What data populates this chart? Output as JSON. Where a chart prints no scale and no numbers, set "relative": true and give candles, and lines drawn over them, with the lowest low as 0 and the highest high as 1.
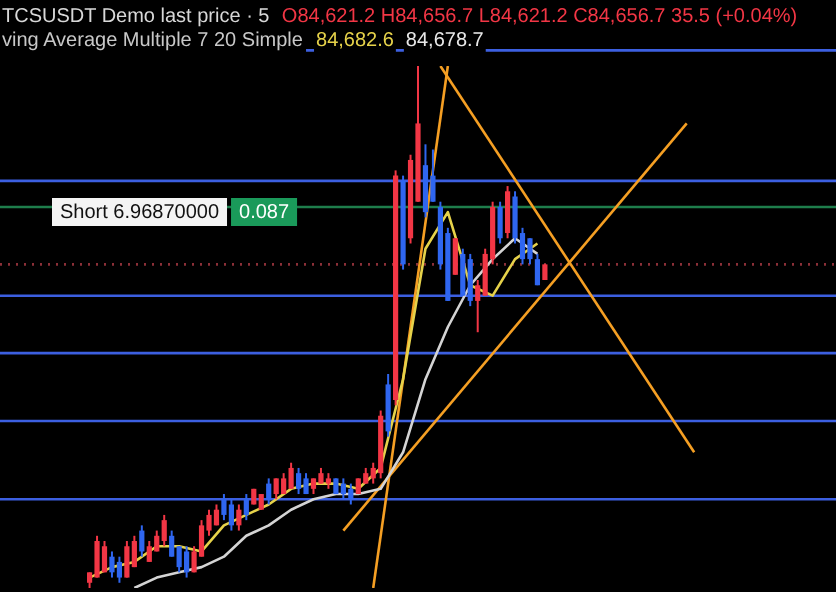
{
  "chart_data": {
    "type": "candlestick",
    "relative": true,
    "categories": [
      null,
      null,
      null,
      null,
      null,
      null,
      null,
      null,
      null,
      null,
      null,
      null,
      null,
      null,
      null,
      null,
      null,
      null,
      null,
      null,
      null,
      null,
      null,
      null,
      null,
      null,
      null,
      null,
      null,
      null,
      null,
      null,
      null,
      null,
      null,
      null,
      null,
      null,
      null,
      null,
      null,
      null,
      null,
      null,
      null,
      null,
      null,
      null,
      null,
      null,
      null,
      null,
      null,
      null,
      null,
      null,
      null,
      null,
      null,
      null,
      null,
      null,
      null,
      null,
      null,
      null,
      null,
      null,
      null,
      null,
      null,
      null,
      null,
      null,
      null,
      null,
      null,
      null,
      null,
      null,
      null,
      null,
      null,
      null,
      null,
      null,
      null,
      null,
      null,
      null,
      null,
      null,
      null,
      null,
      null,
      null,
      null,
      null,
      null,
      null,
      null,
      null,
      null,
      null,
      null,
      null,
      null,
      null,
      null,
      null,
      null,
      null,
      null
    ],
    "ohlc": [
      null,
      null,
      null,
      null,
      null,
      null,
      null,
      null,
      null,
      null,
      null,
      null,
      [
        0.01,
        0.03,
        0,
        0.03
      ],
      [
        0.02,
        0.1,
        0.02,
        0.09
      ],
      [
        0.03,
        0.09,
        0.03,
        0.08
      ],
      [
        0.06,
        0.07,
        0.02,
        0.03
      ],
      [
        0.05,
        0.06,
        0.01,
        0.02
      ],
      [
        0.02,
        0.09,
        0.02,
        0.08
      ],
      [
        0.04,
        0.1,
        0.04,
        0.09
      ],
      [
        0.11,
        0.12,
        0.06,
        0.07
      ],
      [
        0.05,
        0.09,
        0.05,
        0.08
      ],
      [
        0.07,
        0.11,
        0.07,
        0.1
      ],
      [
        0.09,
        0.14,
        0.08,
        0.13
      ],
      [
        0.1,
        0.11,
        0.06,
        0.06
      ],
      [
        0.08,
        0.08,
        0.03,
        0.04
      ],
      [
        0.07,
        0.08,
        0.02,
        0.03
      ],
      [
        0.03,
        0.08,
        0.03,
        0.07
      ],
      [
        0.06,
        0.13,
        0.06,
        0.12
      ],
      [
        0.11,
        0.15,
        0.1,
        0.14
      ],
      [
        0.12,
        0.16,
        0.12,
        0.15
      ],
      [
        0.17,
        0.18,
        0.13,
        0.14
      ],
      [
        0.16,
        0.17,
        0.11,
        0.12
      ],
      [
        0.12,
        0.16,
        0.11,
        0.15
      ],
      [
        0.17,
        0.18,
        0.13,
        0.14
      ],
      [
        0.16,
        0.19,
        0.16,
        0.19
      ],
      [
        0.15,
        0.18,
        0.15,
        0.18
      ],
      [
        0.2,
        0.21,
        0.16,
        0.17
      ],
      [
        0.18,
        0.21,
        0.17,
        0.21
      ],
      [
        0.18,
        0.22,
        0.18,
        0.21
      ],
      [
        0.19,
        0.24,
        0.19,
        0.23
      ],
      [
        0.22,
        0.23,
        0.18,
        0.19
      ],
      [
        0.21,
        0.22,
        0.18,
        0.18
      ],
      [
        0.19,
        0.21,
        0.18,
        0.21
      ],
      [
        0.2,
        0.23,
        0.2,
        0.22
      ],
      [
        0.2,
        0.22,
        0.19,
        0.21
      ],
      [
        0.21,
        0.21,
        0.18,
        0.18
      ],
      [
        0.2,
        0.21,
        0.17,
        0.18
      ],
      [
        0.19,
        0.2,
        0.16,
        0.17
      ],
      [
        0.18,
        0.21,
        0.18,
        0.21
      ],
      [
        0.2,
        0.23,
        0.2,
        0.22
      ],
      [
        0.21,
        0.24,
        0.2,
        0.23
      ],
      [
        0.22,
        0.34,
        0.21,
        0.33
      ],
      [
        0.39,
        0.41,
        0.29,
        0.3
      ],
      [
        0.36,
        0.8,
        0.35,
        0.79
      ],
      [
        0.78,
        0.79,
        0.61,
        0.62
      ],
      [
        0.67,
        0.83,
        0.66,
        0.82
      ],
      [
        0.74,
        1,
        0.74,
        0.89
      ],
      [
        0.81,
        0.85,
        0.71,
        0.72
      ],
      [
        0.79,
        0.84,
        0.74,
        0.74
      ],
      [
        0.73,
        0.74,
        0.61,
        0.62
      ],
      [
        0.68,
        0.69,
        0.55,
        0.55
      ],
      [
        0.6,
        0.67,
        0.6,
        0.67
      ],
      [
        0.64,
        0.65,
        0.56,
        0.56
      ],
      [
        0.63,
        0.64,
        0.54,
        0.55
      ],
      [
        0.55,
        0.59,
        0.49,
        0.58
      ],
      [
        0.56,
        0.65,
        0.56,
        0.64
      ],
      [
        0.63,
        0.74,
        0.62,
        0.73
      ],
      [
        0.73,
        0.74,
        0.66,
        0.67
      ],
      [
        0.68,
        0.77,
        0.67,
        0.76
      ],
      [
        0.75,
        0.76,
        0.66,
        0.67
      ],
      [
        0.68,
        0.69,
        0.62,
        0.63
      ],
      [
        0.67,
        0.67,
        0.62,
        0.63
      ],
      [
        0.63,
        0.64,
        0.58,
        0.58
      ],
      [
        0.59,
        0.62,
        0.59,
        0.62
      ],
      null,
      null,
      null,
      null,
      null,
      null,
      null,
      null,
      null,
      null,
      null,
      null,
      null,
      null,
      null,
      null,
      null,
      null,
      null,
      null,
      null,
      null,
      null,
      null,
      null,
      null,
      null,
      null,
      null,
      null,
      null,
      null,
      null,
      null,
      null,
      null,
      null,
      null,
      null
    ],
    "series": [
      {
        "type": "line",
        "color": "#e6d24a",
        "values": [
          null,
          null,
          null,
          null,
          null,
          null,
          null,
          null,
          null,
          null,
          null,
          null,
          0.02,
          null,
          null,
          0.04,
          null,
          null,
          0.05,
          null,
          null,
          0.08,
          null,
          null,
          0.08,
          null,
          null,
          0.07,
          null,
          null,
          0.12,
          null,
          null,
          0.14,
          null,
          null,
          0.16,
          null,
          null,
          0.19,
          null,
          null,
          0.2,
          null,
          null,
          0.2,
          null,
          null,
          0.19,
          null,
          null,
          0.23,
          null,
          null,
          0.4,
          null,
          null,
          0.65,
          null,
          null,
          0.72,
          null,
          null,
          0.58,
          null,
          null,
          0.56,
          null,
          null,
          0.63,
          null,
          null,
          0.66,
          null,
          null,
          null,
          null,
          null,
          null,
          null,
          null,
          null,
          null,
          null,
          null,
          null,
          null,
          null,
          null,
          null,
          null,
          null,
          null,
          null,
          null,
          null,
          null,
          null,
          null,
          null,
          null,
          null,
          null,
          null,
          null,
          null,
          null,
          null,
          null,
          null,
          null,
          null,
          null
        ]
      },
      {
        "type": "line",
        "color": "#d4d4d4",
        "values": [
          null,
          null,
          null,
          null,
          null,
          null,
          null,
          null,
          null,
          null,
          null,
          null,
          null,
          null,
          null,
          null,
          null,
          null,
          0.0,
          null,
          null,
          0.02,
          null,
          null,
          0.03,
          null,
          null,
          0.04,
          null,
          null,
          0.06,
          null,
          null,
          0.1,
          null,
          null,
          0.12,
          null,
          null,
          0.15,
          null,
          null,
          0.17,
          null,
          null,
          0.18,
          null,
          null,
          0.18,
          null,
          null,
          0.19,
          null,
          null,
          0.26,
          null,
          null,
          0.4,
          null,
          null,
          0.5,
          null,
          null,
          0.58,
          null,
          null,
          0.63,
          null,
          null,
          0.67,
          null,
          null,
          0.64,
          null,
          null,
          null,
          null,
          null,
          null,
          null,
          null,
          null,
          null,
          null,
          null,
          null,
          null,
          null,
          null,
          null,
          null,
          null,
          null,
          null,
          null,
          null,
          null,
          null,
          null,
          null,
          null,
          null,
          null,
          null,
          null,
          null,
          null,
          null,
          null,
          null,
          null,
          null,
          null
        ]
      },
      {
        "type": "line",
        "color": "#f59f23",
        "values": [
          null,
          null,
          null,
          null,
          null,
          null,
          null,
          null,
          null,
          null,
          null,
          null,
          null,
          null,
          null,
          null,
          null,
          null,
          null,
          null,
          null,
          null,
          null,
          null,
          null,
          null,
          null,
          null,
          null,
          null,
          null,
          null,
          null,
          null,
          null,
          null,
          null,
          null,
          null,
          null,
          null,
          null,
          null,
          null,
          null,
          null,
          null,
          null,
          null,
          null,
          0,
          null,
          null,
          null,
          null,
          null,
          null,
          null,
          null,
          null,
          1,
          null,
          null,
          null,
          null,
          null,
          null,
          null,
          null,
          null,
          null,
          null,
          null,
          null,
          null,
          null,
          null,
          null,
          null,
          null,
          null,
          null,
          null,
          null,
          null,
          null,
          null,
          null,
          null,
          null,
          null,
          null,
          null,
          null,
          null,
          null,
          null,
          null,
          null,
          null,
          null,
          null,
          null,
          null,
          null,
          null,
          null,
          null,
          null,
          null,
          null,
          null,
          null
        ]
      },
      {
        "type": "line",
        "color": "#f59f23",
        "values": [
          null,
          null,
          null,
          null,
          null,
          null,
          null,
          null,
          null,
          null,
          null,
          null,
          null,
          null,
          null,
          null,
          null,
          null,
          null,
          null,
          null,
          null,
          null,
          null,
          null,
          null,
          null,
          null,
          null,
          null,
          null,
          null,
          null,
          null,
          null,
          null,
          null,
          null,
          null,
          null,
          null,
          null,
          null,
          null,
          null,
          null,
          null,
          null,
          null,
          null,
          null,
          null,
          null,
          null,
          null,
          null,
          null,
          null,
          null,
          1,
          null,
          null,
          null,
          null,
          null,
          null,
          null,
          null,
          null,
          null,
          null,
          null,
          null,
          null,
          null,
          null,
          null,
          null,
          null,
          null,
          null,
          null,
          null,
          null,
          null,
          null,
          null,
          null,
          null,
          null,
          null,
          null,
          null,
          0.26,
          null,
          null,
          null,
          null,
          null,
          null,
          null,
          null,
          null,
          null,
          null,
          null,
          null,
          null,
          null,
          null,
          null,
          null,
          null
        ]
      },
      {
        "type": "line",
        "color": "#f59f23",
        "values": [
          null,
          null,
          null,
          null,
          null,
          null,
          null,
          null,
          null,
          null,
          null,
          null,
          null,
          null,
          null,
          null,
          null,
          null,
          null,
          null,
          null,
          null,
          null,
          null,
          null,
          null,
          null,
          null,
          null,
          null,
          null,
          null,
          null,
          null,
          null,
          null,
          null,
          null,
          null,
          null,
          null,
          null,
          null,
          null,
          null,
          null,
          0.11,
          null,
          null,
          null,
          null,
          null,
          null,
          null,
          null,
          null,
          null,
          null,
          null,
          null,
          null,
          null,
          null,
          null,
          null,
          null,
          null,
          null,
          null,
          null,
          null,
          null,
          null,
          null,
          null,
          null,
          null,
          null,
          null,
          null,
          null,
          null,
          null,
          null,
          null,
          null,
          null,
          null,
          null,
          null,
          null,
          null,
          0.89,
          null,
          null,
          null,
          null,
          null,
          null,
          null,
          null,
          null,
          null,
          null,
          null,
          null,
          null,
          null,
          null,
          null,
          null,
          null,
          null
        ]
      }
    ],
    "ref_lines": [
      {
        "axis": "y",
        "value": 1.03,
        "color": "#3c5fe0"
      },
      {
        "axis": "y",
        "value": 0.78,
        "color": "#3c5fe0"
      },
      {
        "axis": "y",
        "value": 0.73,
        "color": "#1e7d4b"
      },
      {
        "axis": "y",
        "value": 0.62,
        "color": "#8b2f37",
        "line_style": "dotted"
      },
      {
        "axis": "y",
        "value": 0.56,
        "color": "#3c5fe0"
      },
      {
        "axis": "y",
        "value": 0.45,
        "color": "#3c5fe0"
      },
      {
        "axis": "y",
        "value": 0.32,
        "color": "#3c5fe0"
      },
      {
        "axis": "y",
        "value": 0.17,
        "color": "#3c5fe0"
      }
    ],
    "annotations": [
      "TCSUSDT Demo last price · 5",
      "O84,621.2 H84,656.7 L84,621.2 C84,656.7 35.5 (+0.04%)",
      "ving Average Multiple 7 20 Simple",
      "84,682.6",
      "84,678.7",
      "Short 6.96870000",
      "0.087"
    ]
  }
}
